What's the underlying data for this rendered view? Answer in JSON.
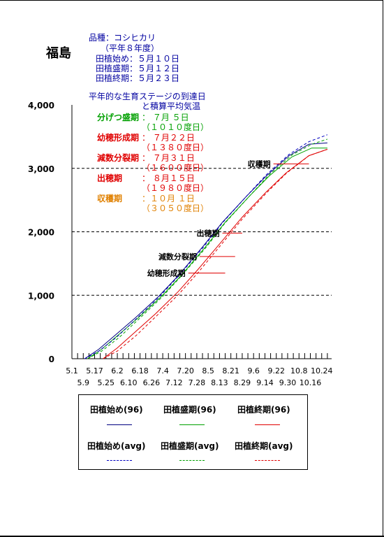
{
  "region": "福島",
  "info": {
    "variety": "品種：コシヒカリ",
    "year": "（平年８年度）",
    "plant_start": "田植始め：５月１０日",
    "plant_peak": "田植盛期：５月１２日",
    "plant_end": "田植終期：５月２３日"
  },
  "chart_data": {
    "type": "line",
    "title": "平年的な生育ステージの到達日",
    "subtitle": "と積算平均気温",
    "ylim": [
      0,
      4000
    ],
    "yticks": [
      "0",
      "1,000",
      "2,000",
      "3,000",
      "4,000"
    ],
    "xticks_top": [
      "5.1",
      "5.17",
      "6.2",
      "6.18",
      "7.4",
      "7.20",
      "8.5",
      "8.21",
      "9.6",
      "9.22",
      "10.8",
      "10.24"
    ],
    "xticks_bottom": [
      "5.9",
      "5.25",
      "6.10",
      "6.26",
      "7.12",
      "7.28",
      "8.13",
      "8.29",
      "9.14",
      "9.30",
      "10.16"
    ],
    "x_start": "5.1",
    "x_end": "10.31",
    "stages": [
      {
        "name": "分げつ盛期",
        "date": "： ７月 ５日",
        "gdd": "（１０１０度日）",
        "color": "#00a000"
      },
      {
        "name": "幼穂形成期",
        "date": "： ７月２２日",
        "gdd": "（１３８０度日）",
        "color": "#e00000"
      },
      {
        "name": "減数分裂期",
        "date": "： ７月３１日",
        "gdd": "（１６００度日）",
        "color": "#e00000"
      },
      {
        "name": "出穂期",
        "date": "： ８月１５日",
        "gdd": "（１９８０度日）",
        "color": "#e00000"
      },
      {
        "name": "収穫期",
        "date": "：１０月 １日",
        "gdd": "（３０５０度日）",
        "color": "#e08000"
      }
    ],
    "stage_markers": [
      {
        "label": "幼穂形成期",
        "y": 1350,
        "x_from": "7.22",
        "x_to": "8.17"
      },
      {
        "label": "減数分裂期",
        "y": 1610,
        "x_from": "7.30",
        "x_to": "8.24"
      },
      {
        "label": "出穂期",
        "y": 1980,
        "x_from": "8.15",
        "x_to": "8.29"
      },
      {
        "label": "収穫期",
        "y": 3070,
        "x_from": "9.20",
        "x_to": "10.15"
      }
    ],
    "series": [
      {
        "name": "田植始め(96)",
        "color": "#000080",
        "style": "solid",
        "x": [
          "5.10",
          "5.20",
          "6.1",
          "6.15",
          "7.1",
          "7.15",
          "8.1",
          "8.15",
          "9.1",
          "9.15",
          "10.1",
          "10.15",
          "10.28"
        ],
        "values": [
          0,
          150,
          380,
          650,
          980,
          1310,
          1760,
          2150,
          2560,
          2880,
          3200,
          3380,
          3400
        ]
      },
      {
        "name": "田植盛期(96)",
        "color": "#00a000",
        "style": "solid",
        "x": [
          "5.12",
          "5.22",
          "6.3",
          "6.17",
          "7.3",
          "7.17",
          "8.3",
          "8.17",
          "9.3",
          "9.17",
          "10.3",
          "10.17",
          "10.28"
        ],
        "values": [
          0,
          150,
          380,
          650,
          980,
          1310,
          1760,
          2150,
          2560,
          2880,
          3180,
          3320,
          3320
        ]
      },
      {
        "name": "田植終期(96)",
        "color": "#e00000",
        "style": "solid",
        "x": [
          "5.23",
          "6.2",
          "6.15",
          "6.29",
          "7.15",
          "7.29",
          "8.15",
          "8.29",
          "9.15",
          "9.29",
          "10.15",
          "10.28"
        ],
        "values": [
          0,
          170,
          430,
          710,
          1060,
          1410,
          1860,
          2230,
          2630,
          2930,
          3200,
          3300
        ]
      },
      {
        "name": "田植始め(avg)",
        "color": "#0000c0",
        "style": "dash",
        "x": [
          "5.10",
          "5.20",
          "6.1",
          "6.15",
          "7.1",
          "7.15",
          "8.1",
          "8.15",
          "9.1",
          "9.15",
          "10.1",
          "10.15",
          "10.28"
        ],
        "values": [
          0,
          120,
          330,
          620,
          960,
          1300,
          1740,
          2140,
          2560,
          2900,
          3220,
          3420,
          3530
        ]
      },
      {
        "name": "田植盛期(avg)",
        "color": "#00a000",
        "style": "dash",
        "x": [
          "5.12",
          "5.22",
          "6.3",
          "6.17",
          "7.3",
          "7.17",
          "8.3",
          "8.17",
          "9.3",
          "9.17",
          "10.3",
          "10.17",
          "10.28"
        ],
        "values": [
          0,
          120,
          330,
          620,
          960,
          1300,
          1740,
          2140,
          2560,
          2900,
          3210,
          3380,
          3460
        ]
      },
      {
        "name": "田植終期(avg)",
        "color": "#e00000",
        "style": "dash",
        "x": [
          "5.23",
          "6.2",
          "6.15",
          "6.29",
          "7.15",
          "7.29",
          "8.15",
          "8.29",
          "9.15",
          "9.29",
          "10.15",
          "10.28"
        ],
        "values": [
          0,
          120,
          360,
          660,
          1010,
          1360,
          1820,
          2200,
          2610,
          2920,
          3200,
          3300
        ]
      }
    ],
    "grid": "dashed at 1,000 2,000 3,000"
  }
}
